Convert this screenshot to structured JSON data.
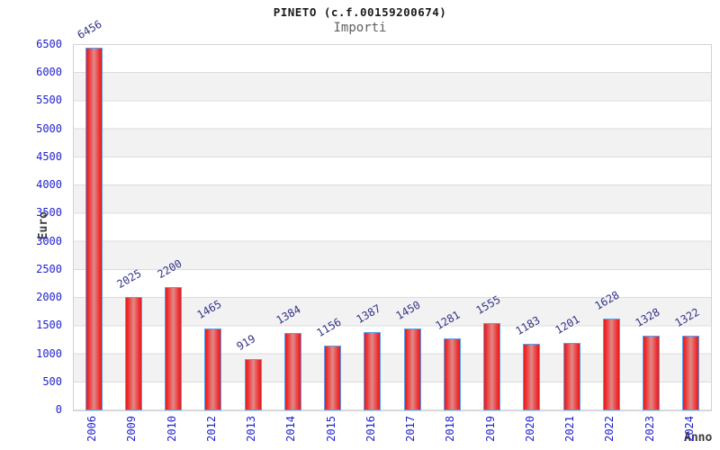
{
  "header": {
    "title": "PINETO (c.f.00159200674)",
    "subtitle": "Importi"
  },
  "chart_data": {
    "type": "bar",
    "title": "PINETO (c.f.00159200674)",
    "subtitle": "Importi",
    "xlabel": "Anno",
    "ylabel": "Euro",
    "categories": [
      "2006",
      "2009",
      "2010",
      "2012",
      "2013",
      "2014",
      "2015",
      "2016",
      "2017",
      "2018",
      "2019",
      "2020",
      "2021",
      "2022",
      "2023",
      "2024"
    ],
    "values": [
      6456,
      2025,
      2200,
      1465,
      919,
      1384,
      1156,
      1387,
      1450,
      1281,
      1555,
      1183,
      1201,
      1628,
      1328,
      1322
    ],
    "ylim": [
      0,
      6500
    ],
    "ytick_step": 500,
    "grid": true,
    "legend": false,
    "value_labels": true,
    "value_label_rotation_deg": -30,
    "x_tick_rotation_deg": 90,
    "colors": {
      "bar_edge": "#55a0f0",
      "bar_fill_dark": "#e41b1b",
      "bar_fill_light": "#e08a8a",
      "tick_label": "#2222cc",
      "value_label": "#333388",
      "axis_title": "#3c3c3c",
      "band_gray": "#f2f2f2",
      "gridline": "#dcdcdc",
      "title_color": "#1a1a1a",
      "subtitle_color": "#606060"
    }
  }
}
